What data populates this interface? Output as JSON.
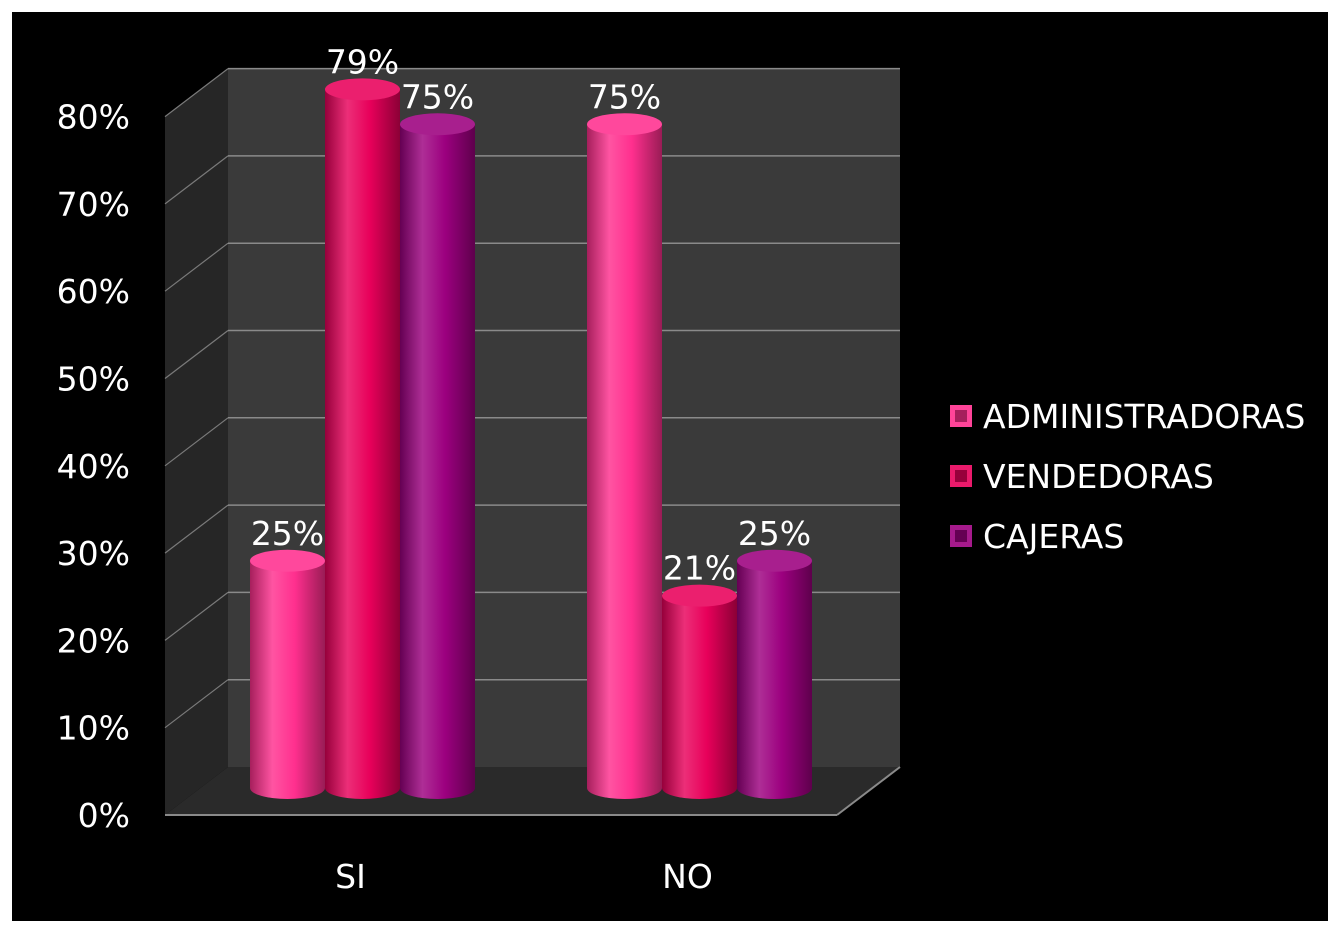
{
  "chart_data": {
    "type": "bar",
    "title": "",
    "xlabel": "",
    "ylabel": "",
    "categories": [
      "SI",
      "NO"
    ],
    "series": [
      {
        "name": "ADMINISTRADORAS",
        "values": [
          25,
          75
        ],
        "labels": [
          "25%",
          "75%"
        ],
        "color": "#ff2f8e"
      },
      {
        "name": "VENDEDORAS",
        "values": [
          79,
          21
        ],
        "labels": [
          "79%",
          "21%"
        ],
        "color": "#e8005a"
      },
      {
        "name": "CAJERAS",
        "values": [
          75,
          25
        ],
        "labels": [
          "75%",
          "25%"
        ],
        "color": "#9c007f"
      }
    ],
    "ylim": [
      0,
      80
    ],
    "yticks": [
      0,
      10,
      20,
      30,
      40,
      50,
      60,
      70,
      80
    ],
    "ytick_labels": [
      "0%",
      "10%",
      "20%",
      "30%",
      "40%",
      "50%",
      "60%",
      "70%",
      "80%"
    ],
    "grid": true,
    "legend_position": "right",
    "style": "3d-cylinder",
    "background_color": "#000000",
    "wall_color": "#3a3a3a",
    "text_color": "#ffffff"
  }
}
